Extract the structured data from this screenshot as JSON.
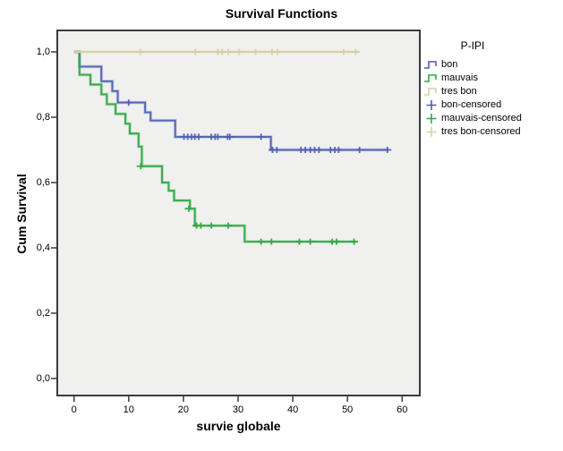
{
  "title": "Survival Functions",
  "axes": {
    "x": {
      "label": "survie globale",
      "ticks": [
        {
          "label": "0",
          "value": 0
        },
        {
          "label": "10",
          "value": 10
        },
        {
          "label": "20",
          "value": 20
        },
        {
          "label": "30",
          "value": 30
        },
        {
          "label": "40",
          "value": 40
        },
        {
          "label": "50",
          "value": 50
        },
        {
          "label": "60",
          "value": 60
        }
      ]
    },
    "y": {
      "label": "Cum Survival",
      "ticks": [
        {
          "label": "1,0",
          "value": 1.0
        },
        {
          "label": "0,8",
          "value": 0.8
        },
        {
          "label": "0,6",
          "value": 0.6
        },
        {
          "label": "0,4",
          "value": 0.4
        },
        {
          "label": "0,2",
          "value": 0.2
        },
        {
          "label": "0,0",
          "value": 0.0
        }
      ]
    }
  },
  "legend": {
    "title": "P-IPI",
    "items": [
      {
        "label": "bon",
        "color": "#4f61b2",
        "type": "step"
      },
      {
        "label": "mauvais",
        "color": "#2fa844",
        "type": "step"
      },
      {
        "label": "tres bon",
        "color": "#d8d0a2",
        "type": "step"
      },
      {
        "label": "bon-censored",
        "color": "#4f61b2",
        "type": "plus"
      },
      {
        "label": "mauvais-censored",
        "color": "#2fa844",
        "type": "plus"
      },
      {
        "label": "tres bon-censored",
        "color": "#d8d0a2",
        "type": "plus"
      }
    ]
  },
  "colors": {
    "plot_background": "#f0f0ee",
    "plot_border": "#3b3b3b",
    "bon": "#4f61b2",
    "mauvais": "#2fa844",
    "tres_bon": "#d8d0a2"
  },
  "chart_data": {
    "type": "line",
    "subtype": "kaplan-meier-step",
    "title": "Survival Functions",
    "xlabel": "survie globale",
    "ylabel": "Cum Survival",
    "xlim": [
      -3.3,
      63.4
    ],
    "ylim": [
      -0.055,
      1.07
    ],
    "grid": false,
    "legend_position": "right",
    "series": [
      {
        "name": "bon",
        "color": "#4f61b2",
        "steps": [
          [
            0,
            1.0
          ],
          [
            1,
            0.955
          ],
          [
            5,
            0.91
          ],
          [
            7,
            0.88
          ],
          [
            8,
            0.845
          ],
          [
            13,
            0.815
          ],
          [
            14,
            0.79
          ],
          [
            18.5,
            0.74
          ],
          [
            36,
            0.7
          ]
        ],
        "end": 57.5,
        "censored": [
          [
            10,
            0.845
          ],
          [
            20.1,
            0.74
          ],
          [
            20.8,
            0.74
          ],
          [
            21.5,
            0.74
          ],
          [
            22.1,
            0.74
          ],
          [
            22.8,
            0.74
          ],
          [
            25.1,
            0.74
          ],
          [
            25.8,
            0.74
          ],
          [
            26.3,
            0.74
          ],
          [
            28.1,
            0.74
          ],
          [
            28.5,
            0.74
          ],
          [
            34.2,
            0.74
          ],
          [
            36.3,
            0.7
          ],
          [
            37.1,
            0.7
          ],
          [
            41.5,
            0.7
          ],
          [
            42.3,
            0.7
          ],
          [
            43.2,
            0.7
          ],
          [
            44,
            0.7
          ],
          [
            44.8,
            0.7
          ],
          [
            46.9,
            0.7
          ],
          [
            47.7,
            0.7
          ],
          [
            48.4,
            0.7
          ],
          [
            52.2,
            0.7
          ],
          [
            57.3,
            0.7
          ]
        ]
      },
      {
        "name": "mauvais",
        "color": "#2fa844",
        "steps": [
          [
            0,
            1.0
          ],
          [
            1,
            0.93
          ],
          [
            3,
            0.9
          ],
          [
            5,
            0.87
          ],
          [
            6,
            0.84
          ],
          [
            7.6,
            0.81
          ],
          [
            9.4,
            0.78
          ],
          [
            10.2,
            0.75
          ],
          [
            11.8,
            0.71
          ],
          [
            12.4,
            0.65
          ],
          [
            16.1,
            0.6
          ],
          [
            17.3,
            0.575
          ],
          [
            18.3,
            0.545
          ],
          [
            21.2,
            0.52
          ],
          [
            22.1,
            0.468
          ],
          [
            31.2,
            0.419
          ]
        ],
        "end": 51.6,
        "censored": [
          [
            12.2,
            0.65
          ],
          [
            21.0,
            0.52
          ],
          [
            22.4,
            0.468
          ],
          [
            23.2,
            0.468
          ],
          [
            25.1,
            0.468
          ],
          [
            28.2,
            0.468
          ],
          [
            34.2,
            0.419
          ],
          [
            36.1,
            0.419
          ],
          [
            41.2,
            0.419
          ],
          [
            43.2,
            0.419
          ],
          [
            47.2,
            0.419
          ],
          [
            48,
            0.419
          ],
          [
            51.2,
            0.419
          ]
        ]
      },
      {
        "name": "tres bon",
        "color": "#d8d0a2",
        "steps": [
          [
            0,
            1.0
          ]
        ],
        "end": 52.1,
        "censored": [
          [
            12.1,
            1.0
          ],
          [
            22.2,
            1.0
          ],
          [
            26.3,
            1.0
          ],
          [
            27.1,
            1.0
          ],
          [
            28.2,
            1.0
          ],
          [
            30.2,
            1.0
          ],
          [
            33.2,
            1.0
          ],
          [
            36.2,
            1.0
          ],
          [
            37.2,
            1.0
          ],
          [
            49.3,
            1.0
          ],
          [
            51.5,
            1.0
          ]
        ]
      }
    ]
  }
}
